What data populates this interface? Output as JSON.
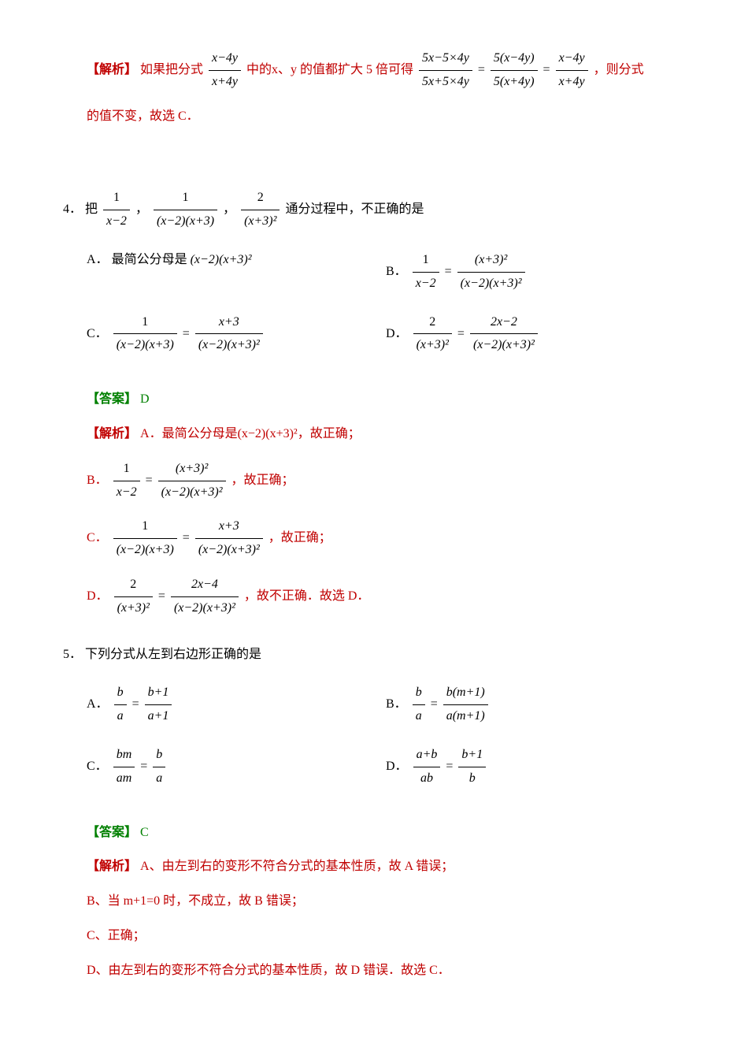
{
  "prev_analysis": {
    "label": "【解析】",
    "text_before": "如果把分式",
    "frac1_num": "x−4y",
    "frac1_den": "x+4y",
    "text_mid": "中的x、y 的值都扩大 5 倍可得",
    "frac2_num": "5x−5×4y",
    "frac2_den": "5x+5×4y",
    "eq": "=",
    "frac3_num": "5(x−4y)",
    "frac3_den": "5(x+4y)",
    "frac4_num": "x−4y",
    "frac4_den": "x+4y",
    "text_after": "，则分式",
    "line2": "的值不变，故选 C．"
  },
  "q4": {
    "num": "4．",
    "text_before": "把",
    "frac1_num": "1",
    "frac1_den": "x−2",
    "comma1": "，",
    "frac2_num": "1",
    "frac2_den": "(x−2)(x+3)",
    "comma2": "，",
    "frac3_num": "2",
    "frac3_den": "(x+3)²",
    "text_after": " 通分过程中，不正确的是",
    "optA_label": "A．",
    "optA_text": "最简公分母是",
    "optA_expr": "(x−2)(x+3)²",
    "optB_label": "B．",
    "optB_f1_num": "1",
    "optB_f1_den": "x−2",
    "optB_eq": "=",
    "optB_f2_num": "(x+3)²",
    "optB_f2_den": "(x−2)(x+3)²",
    "optC_label": "C．",
    "optC_f1_num": "1",
    "optC_f1_den": "(x−2)(x+3)",
    "optC_eq": "=",
    "optC_f2_num": "x+3",
    "optC_f2_den": "(x−2)(x+3)²",
    "optD_label": "D．",
    "optD_f1_num": "2",
    "optD_f1_den": "(x+3)²",
    "optD_eq": "=",
    "optD_f2_num": "2x−2",
    "optD_f2_den": "(x−2)(x+3)²",
    "answer_label": "【答案】",
    "answer": "D",
    "analysis_label": "【解析】",
    "ana_A": "A．最简公分母是(x−2)(x+3)²，故正确；",
    "ana_B_label": "B．",
    "ana_B_f1_num": "1",
    "ana_B_f1_den": "x−2",
    "ana_B_eq": "=",
    "ana_B_f2_num": "(x+3)²",
    "ana_B_f2_den": "(x−2)(x+3)²",
    "ana_B_after": "，故正确；",
    "ana_C_label": "C．",
    "ana_C_f1_num": "1",
    "ana_C_f1_den": "(x−2)(x+3)",
    "ana_C_eq": "=",
    "ana_C_f2_num": "x+3",
    "ana_C_f2_den": "(x−2)(x+3)²",
    "ana_C_after": "，故正确；",
    "ana_D_label": "D．",
    "ana_D_f1_num": "2",
    "ana_D_f1_den": "(x+3)²",
    "ana_D_eq": "=",
    "ana_D_f2_num": "2x−4",
    "ana_D_f2_den": "(x−2)(x+3)²",
    "ana_D_after": "，故不正确．故选 D．"
  },
  "q5": {
    "num": "5．",
    "text": "下列分式从左到右边形正确的是",
    "optA_label": "A．",
    "optA_f1_num": "b",
    "optA_f1_den": "a",
    "optA_eq": "=",
    "optA_f2_num": "b+1",
    "optA_f2_den": "a+1",
    "optB_label": "B．",
    "optB_f1_num": "b",
    "optB_f1_den": "a",
    "optB_eq": "=",
    "optB_f2_num": "b(m+1)",
    "optB_f2_den": "a(m+1)",
    "optC_label": "C．",
    "optC_f1_num": "bm",
    "optC_f1_den": "am",
    "optC_eq": "=",
    "optC_f2_num": "b",
    "optC_f2_den": "a",
    "optD_label": "D．",
    "optD_f1_num": "a+b",
    "optD_f1_den": "ab",
    "optD_eq": "=",
    "optD_f2_num": "b+1",
    "optD_f2_den": "b",
    "answer_label": "【答案】",
    "answer": "C",
    "analysis_label": "【解析】",
    "ana_A": "A、由左到右的变形不符合分式的基本性质，故 A 错误；",
    "ana_B": "B、当 m+1=0 时，不成立，故 B 错误；",
    "ana_C": "C、正确；",
    "ana_D": "D、由左到右的变形不符合分式的基本性质，故 D 错误．故选 C．"
  }
}
